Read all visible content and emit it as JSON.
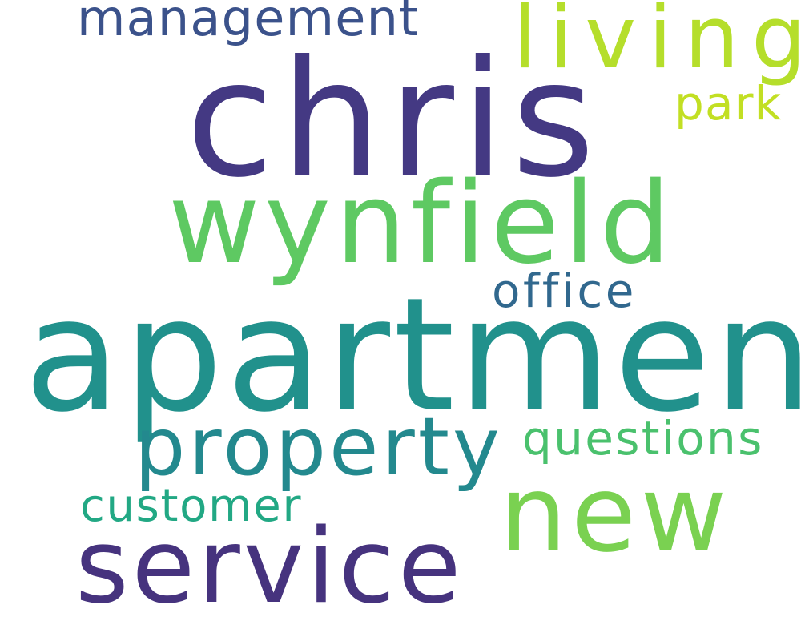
{
  "words": [
    {
      "id": "management",
      "text": "management",
      "color": "#3b528b"
    },
    {
      "id": "living",
      "text": "living",
      "color": "#b5de2b"
    },
    {
      "id": "park",
      "text": "park",
      "color": "#c2df23"
    },
    {
      "id": "chris",
      "text": "chris",
      "color": "#443983"
    },
    {
      "id": "wynfield",
      "text": "wynfield",
      "color": "#5ec962"
    },
    {
      "id": "office",
      "text": "office",
      "color": "#31688e"
    },
    {
      "id": "apartment",
      "text": "apartment",
      "color": "#21918c"
    },
    {
      "id": "property",
      "text": "property",
      "color": "#23898e"
    },
    {
      "id": "questions",
      "text": "questions",
      "color": "#4ac16d"
    },
    {
      "id": "customer",
      "text": "customer",
      "color": "#22a884"
    },
    {
      "id": "new",
      "text": "new",
      "color": "#7ad151"
    },
    {
      "id": "service",
      "text": "service",
      "color": "#46337e"
    }
  ]
}
